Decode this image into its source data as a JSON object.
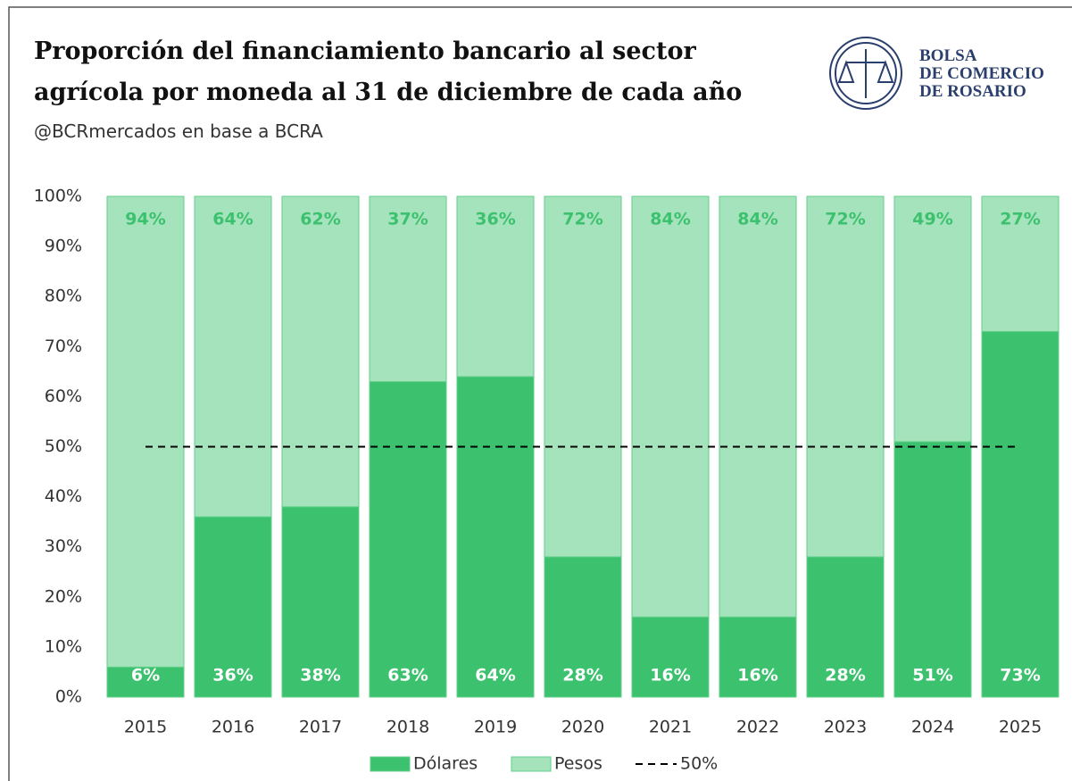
{
  "chart_data": {
    "type": "stacked_bar",
    "title": [
      "Proporción del financiamiento bancario al sector",
      "agrícola por moneda al 31 de diciembre de cada año"
    ],
    "subtitle": "@BCRmercados en base a BCRA",
    "logo": [
      "BOLSA",
      "DE COMERCIO",
      "DE ROSARIO"
    ],
    "categories": [
      "2015",
      "2016",
      "2017",
      "2018",
      "2019",
      "2020",
      "2021",
      "2022",
      "2023",
      "2024",
      "2025"
    ],
    "series": [
      {
        "name": "Dólares",
        "color": "#3cc16e",
        "label_color": "#ffffff",
        "values": [
          6,
          36,
          38,
          63,
          64,
          28,
          16,
          16,
          28,
          51,
          73
        ],
        "value_labels": [
          "6%",
          "36%",
          "38%",
          "63%",
          "64%",
          "28%",
          "16%",
          "16%",
          "28%",
          "51%",
          "73%"
        ]
      },
      {
        "name": "Pesos",
        "color": "#a5e3bd",
        "label_color": "#3cc16e",
        "values": [
          94,
          64,
          62,
          37,
          36,
          72,
          84,
          84,
          72,
          49,
          27
        ],
        "value_labels": [
          "94%",
          "64%",
          "62%",
          "37%",
          "36%",
          "72%",
          "84%",
          "84%",
          "72%",
          "49%",
          "27%"
        ]
      }
    ],
    "reference_line": {
      "name": "50%",
      "value": 50,
      "color": "#000000"
    },
    "ylim": [
      0,
      100
    ],
    "yticks": [
      {
        "value": 0,
        "label": "0%"
      },
      {
        "value": 10,
        "label": "10%"
      },
      {
        "value": 20,
        "label": "20%"
      },
      {
        "value": 30,
        "label": "30%"
      },
      {
        "value": 40,
        "label": "40%"
      },
      {
        "value": 50,
        "label": "50%"
      },
      {
        "value": 60,
        "label": "60%"
      },
      {
        "value": 70,
        "label": "70%"
      },
      {
        "value": 80,
        "label": "80%"
      },
      {
        "value": 90,
        "label": "90%"
      },
      {
        "value": 100,
        "label": "100%"
      }
    ],
    "grid": false,
    "legend": "bottom"
  }
}
